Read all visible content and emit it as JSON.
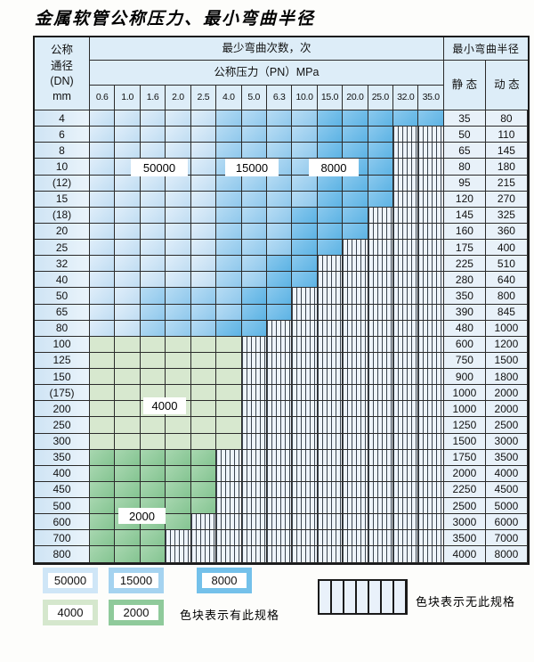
{
  "title": "金属软管公称压力、最小弯曲半径",
  "table": {
    "header": {
      "dn_lines": [
        "公称",
        "通径",
        "(DN)",
        "mm"
      ],
      "cycles_label": "最少弯曲次数，次",
      "pressure_label": "公称压力（PN）MPa",
      "radius_label": "最小弯曲半径",
      "static_label": "静 态",
      "dynamic_label": "动 态",
      "pressures": [
        "0.6",
        "1.0",
        "1.6",
        "2.0",
        "2.5",
        "4.0",
        "5.0",
        "6.3",
        "10.0",
        "15.0",
        "20.0",
        "25.0",
        "32.0",
        "35.0"
      ]
    },
    "zone_values": {
      "L": "50000",
      "M": "15000",
      "D": "8000",
      "G": "4000",
      "H": "2000",
      "X": "no-spec"
    },
    "floating_labels": [
      {
        "text": "50000"
      },
      {
        "text": "15000"
      },
      {
        "text": "8000"
      },
      {
        "text": "4000"
      },
      {
        "text": "2000"
      }
    ],
    "rows": [
      {
        "dn": "4",
        "cells": [
          "L",
          "L",
          "L",
          "L",
          "L",
          "M",
          "M",
          "M",
          "M",
          "D",
          "D",
          "D",
          "D",
          "D"
        ],
        "static": "35",
        "dynamic": "80"
      },
      {
        "dn": "6",
        "cells": [
          "L",
          "L",
          "L",
          "L",
          "L",
          "M",
          "M",
          "M",
          "M",
          "D",
          "D",
          "D",
          "X",
          "X"
        ],
        "static": "50",
        "dynamic": "110"
      },
      {
        "dn": "8",
        "cells": [
          "L",
          "L",
          "L",
          "L",
          "L",
          "M",
          "M",
          "M",
          "M",
          "D",
          "D",
          "D",
          "X",
          "X"
        ],
        "static": "65",
        "dynamic": "145"
      },
      {
        "dn": "10",
        "cells": [
          "L",
          "L",
          "L",
          "L",
          "L",
          "M",
          "M",
          "M",
          "M",
          "D",
          "D",
          "D",
          "X",
          "X"
        ],
        "static": "80",
        "dynamic": "180"
      },
      {
        "dn": "(12)",
        "cells": [
          "L",
          "L",
          "L",
          "L",
          "L",
          "M",
          "M",
          "M",
          "M",
          "D",
          "D",
          "D",
          "X",
          "X"
        ],
        "static": "95",
        "dynamic": "215"
      },
      {
        "dn": "15",
        "cells": [
          "L",
          "L",
          "L",
          "L",
          "L",
          "M",
          "M",
          "M",
          "M",
          "D",
          "D",
          "D",
          "X",
          "X"
        ],
        "static": "120",
        "dynamic": "270"
      },
      {
        "dn": "(18)",
        "cells": [
          "L",
          "L",
          "L",
          "L",
          "L",
          "M",
          "M",
          "M",
          "D",
          "D",
          "D",
          "X",
          "X",
          "X"
        ],
        "static": "145",
        "dynamic": "325"
      },
      {
        "dn": "20",
        "cells": [
          "L",
          "L",
          "L",
          "L",
          "L",
          "M",
          "M",
          "M",
          "D",
          "D",
          "D",
          "X",
          "X",
          "X"
        ],
        "static": "160",
        "dynamic": "360"
      },
      {
        "dn": "25",
        "cells": [
          "L",
          "L",
          "L",
          "L",
          "L",
          "M",
          "M",
          "M",
          "D",
          "D",
          "X",
          "X",
          "X",
          "X"
        ],
        "static": "175",
        "dynamic": "400"
      },
      {
        "dn": "32",
        "cells": [
          "L",
          "L",
          "L",
          "L",
          "L",
          "M",
          "M",
          "D",
          "D",
          "X",
          "X",
          "X",
          "X",
          "X"
        ],
        "static": "225",
        "dynamic": "510"
      },
      {
        "dn": "40",
        "cells": [
          "L",
          "L",
          "L",
          "L",
          "L",
          "M",
          "M",
          "D",
          "D",
          "X",
          "X",
          "X",
          "X",
          "X"
        ],
        "static": "280",
        "dynamic": "640"
      },
      {
        "dn": "50",
        "cells": [
          "L",
          "L",
          "M",
          "M",
          "M",
          "M",
          "D",
          "D",
          "X",
          "X",
          "X",
          "X",
          "X",
          "X"
        ],
        "static": "350",
        "dynamic": "800"
      },
      {
        "dn": "65",
        "cells": [
          "L",
          "L",
          "M",
          "M",
          "M",
          "M",
          "D",
          "D",
          "X",
          "X",
          "X",
          "X",
          "X",
          "X"
        ],
        "static": "390",
        "dynamic": "845"
      },
      {
        "dn": "80",
        "cells": [
          "L",
          "L",
          "M",
          "M",
          "M",
          "D",
          "D",
          "X",
          "X",
          "X",
          "X",
          "X",
          "X",
          "X"
        ],
        "static": "480",
        "dynamic": "1000"
      },
      {
        "dn": "100",
        "cells": [
          "G",
          "G",
          "G",
          "G",
          "G",
          "G",
          "X",
          "X",
          "X",
          "X",
          "X",
          "X",
          "X",
          "X"
        ],
        "static": "600",
        "dynamic": "1200"
      },
      {
        "dn": "125",
        "cells": [
          "G",
          "G",
          "G",
          "G",
          "G",
          "G",
          "X",
          "X",
          "X",
          "X",
          "X",
          "X",
          "X",
          "X"
        ],
        "static": "750",
        "dynamic": "1500"
      },
      {
        "dn": "150",
        "cells": [
          "G",
          "G",
          "G",
          "G",
          "G",
          "G",
          "X",
          "X",
          "X",
          "X",
          "X",
          "X",
          "X",
          "X"
        ],
        "static": "900",
        "dynamic": "1800"
      },
      {
        "dn": "(175)",
        "cells": [
          "G",
          "G",
          "G",
          "G",
          "G",
          "G",
          "X",
          "X",
          "X",
          "X",
          "X",
          "X",
          "X",
          "X"
        ],
        "static": "1000",
        "dynamic": "2000"
      },
      {
        "dn": "200",
        "cells": [
          "G",
          "G",
          "G",
          "G",
          "G",
          "G",
          "X",
          "X",
          "X",
          "X",
          "X",
          "X",
          "X",
          "X"
        ],
        "static": "1000",
        "dynamic": "2000"
      },
      {
        "dn": "250",
        "cells": [
          "G",
          "G",
          "G",
          "G",
          "G",
          "G",
          "X",
          "X",
          "X",
          "X",
          "X",
          "X",
          "X",
          "X"
        ],
        "static": "1250",
        "dynamic": "2500"
      },
      {
        "dn": "300",
        "cells": [
          "G",
          "G",
          "G",
          "G",
          "G",
          "G",
          "X",
          "X",
          "X",
          "X",
          "X",
          "X",
          "X",
          "X"
        ],
        "static": "1500",
        "dynamic": "3000"
      },
      {
        "dn": "350",
        "cells": [
          "H",
          "H",
          "H",
          "H",
          "H",
          "X",
          "X",
          "X",
          "X",
          "X",
          "X",
          "X",
          "X",
          "X"
        ],
        "static": "1750",
        "dynamic": "3500"
      },
      {
        "dn": "400",
        "cells": [
          "H",
          "H",
          "H",
          "H",
          "H",
          "X",
          "X",
          "X",
          "X",
          "X",
          "X",
          "X",
          "X",
          "X"
        ],
        "static": "2000",
        "dynamic": "4000"
      },
      {
        "dn": "450",
        "cells": [
          "H",
          "H",
          "H",
          "H",
          "H",
          "X",
          "X",
          "X",
          "X",
          "X",
          "X",
          "X",
          "X",
          "X"
        ],
        "static": "2250",
        "dynamic": "4500"
      },
      {
        "dn": "500",
        "cells": [
          "H",
          "H",
          "H",
          "H",
          "H",
          "X",
          "X",
          "X",
          "X",
          "X",
          "X",
          "X",
          "X",
          "X"
        ],
        "static": "2500",
        "dynamic": "5000"
      },
      {
        "dn": "600",
        "cells": [
          "H",
          "H",
          "H",
          "H",
          "X",
          "X",
          "X",
          "X",
          "X",
          "X",
          "X",
          "X",
          "X",
          "X"
        ],
        "static": "3000",
        "dynamic": "6000"
      },
      {
        "dn": "700",
        "cells": [
          "H",
          "H",
          "H",
          "X",
          "X",
          "X",
          "X",
          "X",
          "X",
          "X",
          "X",
          "X",
          "X",
          "X"
        ],
        "static": "3500",
        "dynamic": "7000"
      },
      {
        "dn": "800",
        "cells": [
          "H",
          "H",
          "H",
          "X",
          "X",
          "X",
          "X",
          "X",
          "X",
          "X",
          "X",
          "X",
          "X",
          "X"
        ],
        "static": "4000",
        "dynamic": "8000"
      }
    ]
  },
  "legend": {
    "items": [
      {
        "value": "50000",
        "color": "#cfe6f7"
      },
      {
        "value": "15000",
        "color": "#a5d3f0"
      },
      {
        "value": "8000",
        "color": "#74c1ea"
      },
      {
        "value": "4000",
        "color": "#d5e7cd"
      },
      {
        "value": "2000",
        "color": "#8fca9b"
      }
    ],
    "has_spec_text": "色块表示有此规格",
    "no_spec_text": "色块表示无此规格"
  },
  "colors": {
    "zone_50000": "#cfe5f7",
    "zone_15000": "#a0d1ef",
    "zone_8000": "#6fbde8",
    "zone_4000": "#d7e8cf",
    "zone_2000": "#94cc9e",
    "hatch_bg": "#eef4fb",
    "header_bg": "#ddedf8",
    "grid_line": "#2b2b2b"
  }
}
